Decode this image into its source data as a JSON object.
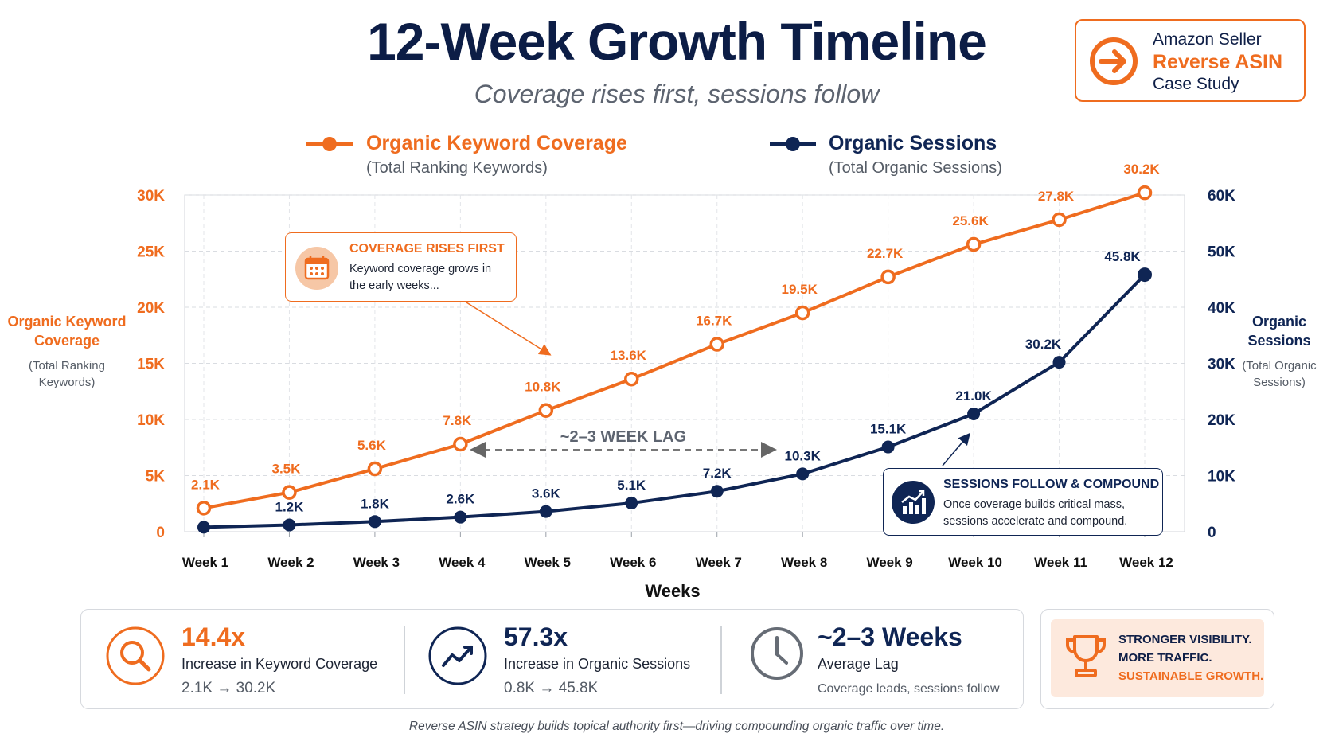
{
  "header": {
    "title": "12-Week Growth Timeline",
    "subtitle": "Coverage rises first, sessions follow"
  },
  "badge": {
    "line1": "Amazon Seller",
    "line2": "Reverse ASIN",
    "line3": "Case Study",
    "icon": "arrow-right-circle-icon"
  },
  "legend": {
    "coverage": {
      "label": "Organic Keyword Coverage",
      "sub": "(Total Ranking Keywords)"
    },
    "sessions": {
      "label": "Organic Sessions",
      "sub": "(Total Organic Sessions)"
    }
  },
  "axes": {
    "left_title_1": "Organic Keyword",
    "left_title_2": "Coverage",
    "left_sub_1": "(Total Ranking",
    "left_sub_2": "Keywords)",
    "right_title_1": "Organic",
    "right_title_2": "Sessions",
    "right_sub_1": "(Total Organic",
    "right_sub_2": "Sessions)",
    "x_title": "Weeks"
  },
  "callouts": {
    "coverage": {
      "title": "COVERAGE RISES FIRST",
      "text_1": "Keyword coverage grows in",
      "text_2": "the early weeks...",
      "icon": "calendar-icon"
    },
    "sessions": {
      "title": "SESSIONS FOLLOW & COMPOUND",
      "text_1": "Once coverage builds critical mass,",
      "text_2": "sessions accelerate and compound.",
      "icon": "bar-chart-growth-icon"
    },
    "lag": "~2–3 WEEK LAG"
  },
  "stats": [
    {
      "value": "14.4x",
      "label": "Increase in Keyword Coverage",
      "detail": "2.1K → 30.2K",
      "icon": "magnifier-icon"
    },
    {
      "value": "57.3x",
      "label": "Increase in Organic Sessions",
      "detail": "0.8K → 45.8K",
      "icon": "trend-up-icon"
    },
    {
      "value": "~2–3 Weeks",
      "label": "Average Lag",
      "detail": "Coverage leads, sessions follow",
      "icon": "clock-icon"
    }
  ],
  "growth": {
    "line1": "STRONGER VISIBILITY.",
    "line2": "MORE TRAFFIC.",
    "line3": "SUSTAINABLE GROWTH.",
    "icon": "trophy-icon"
  },
  "footer": "Reverse ASIN strategy builds topical authority first—driving compounding organic traffic over time.",
  "colors": {
    "orange": "#ef6c1f",
    "navy": "#0f2554",
    "grid": "#d9dce1"
  },
  "chart_data": {
    "type": "line",
    "title": "12-Week Growth Timeline",
    "subtitle": "Coverage rises first, sessions follow",
    "xlabel": "Weeks",
    "categories": [
      "Week 1",
      "Week 2",
      "Week 3",
      "Week 4",
      "Week 5",
      "Week 6",
      "Week 7",
      "Week 8",
      "Week 9",
      "Week 10",
      "Week 11",
      "Week 12"
    ],
    "grid": true,
    "legend_position": "top",
    "y_left": {
      "label": "Organic Keyword Coverage",
      "sub": "(Total Ranking Keywords)",
      "range": [
        0,
        30000
      ],
      "ticks": [
        0,
        5000,
        10000,
        15000,
        20000,
        25000,
        30000
      ],
      "tick_labels": [
        "0",
        "5K",
        "10K",
        "15K",
        "20K",
        "25K",
        "30K"
      ]
    },
    "y_right": {
      "label": "Organic Sessions",
      "sub": "(Total Organic Sessions)",
      "range": [
        0,
        60000
      ],
      "ticks": [
        0,
        10000,
        20000,
        30000,
        40000,
        50000,
        60000
      ],
      "tick_labels": [
        "0",
        "10K",
        "20K",
        "30K",
        "40K",
        "50K",
        "60K"
      ]
    },
    "series": [
      {
        "name": "Organic Keyword Coverage",
        "axis": "left",
        "color": "#ef6c1f",
        "values": [
          2100,
          3500,
          5600,
          7800,
          10800,
          13600,
          16700,
          19500,
          22700,
          25600,
          27800,
          30200
        ],
        "labels": [
          "2.1K",
          "3.5K",
          "5.6K",
          "7.8K",
          "10.8K",
          "13.6K",
          "16.7K",
          "19.5K",
          "22.7K",
          "25.6K",
          "27.8K",
          "30.2K"
        ]
      },
      {
        "name": "Organic Sessions",
        "axis": "right",
        "color": "#0f2554",
        "values": [
          800,
          1200,
          1800,
          2600,
          3600,
          5100,
          7200,
          10300,
          15100,
          21000,
          30200,
          45800
        ],
        "labels": [
          "",
          "1.2K",
          "1.8K",
          "2.6K",
          "3.6K",
          "5.1K",
          "7.2K",
          "10.3K",
          "15.1K",
          "21.0K",
          "30.2K",
          "45.8K"
        ]
      }
    ]
  }
}
